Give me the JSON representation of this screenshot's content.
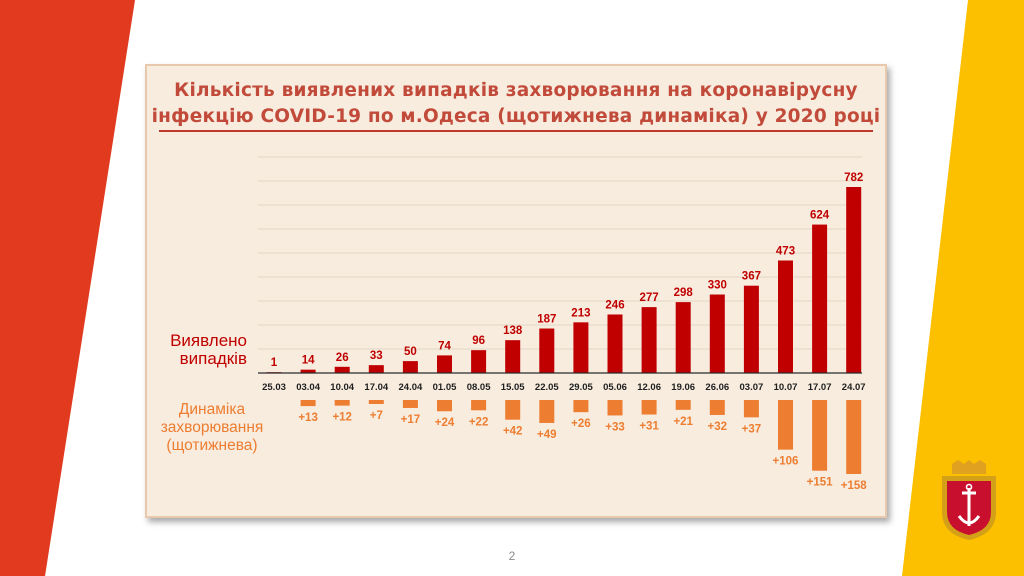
{
  "slide": {
    "title_line1": "Кількість виявлених випадків захворювання на коронавірусну",
    "title_line2": "інфекцію COVID-19 по м.Одеса (щотижнева динаміка) у 2020 році",
    "page_number": "2"
  },
  "colors": {
    "left_stripe": "#e13a1e",
    "right_stripe": "#fcc000",
    "cases_bar": "#c00000",
    "dynamics_bar": "#ed7d31",
    "cases_label": "#c00000",
    "dynamics_label": "#ed7d31",
    "date_label": "#1f1f1f"
  },
  "chart_data": {
    "type": "bar",
    "categories": [
      "25.03",
      "03.04",
      "10.04",
      "17.04",
      "24.04",
      "01.05",
      "08.05",
      "15.05",
      "22.05",
      "29.05",
      "05.06",
      "12.06",
      "19.06",
      "26.06",
      "03.07",
      "10.07",
      "17.07",
      "24.07"
    ],
    "series": [
      {
        "name": "Виявлено випадків",
        "values": [
          1,
          14,
          26,
          33,
          50,
          74,
          96,
          138,
          187,
          213,
          246,
          277,
          298,
          330,
          367,
          473,
          624,
          782
        ],
        "labels": [
          "1",
          "14",
          "26",
          "33",
          "50",
          "74",
          "96",
          "138",
          "187",
          "213",
          "246",
          "277",
          "298",
          "330",
          "367",
          "473",
          "624",
          "782"
        ]
      },
      {
        "name": "Динаміка захворювання (щотижнева)",
        "values": [
          null,
          13,
          12,
          7,
          17,
          24,
          22,
          42,
          49,
          26,
          33,
          31,
          21,
          32,
          37,
          106,
          151,
          158
        ],
        "labels": [
          "",
          "+13",
          "+12",
          "+7",
          "+17",
          "+24",
          "+22",
          "+42",
          "+49",
          "+26",
          "+33",
          "+31",
          "+21",
          "+32",
          "+37",
          "+106",
          "+151",
          "+158"
        ]
      }
    ],
    "series_labels": {
      "cases_line1": "Виявлено",
      "cases_line2": "випадків",
      "dyn_line1": "Динаміка",
      "dyn_line2": "захворювання",
      "dyn_line3": "(щотижнева)"
    },
    "grid": true
  }
}
